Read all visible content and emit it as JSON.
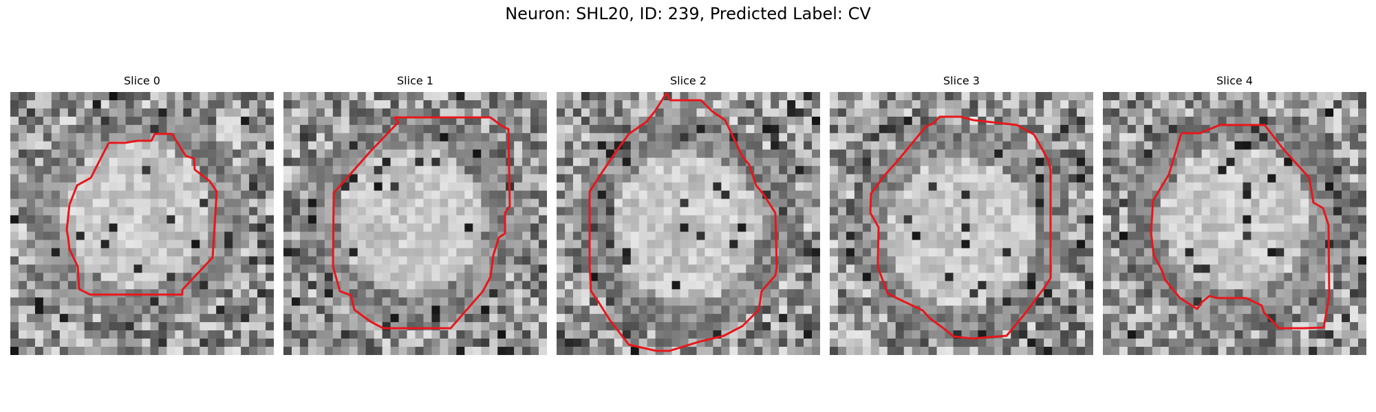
{
  "figure": {
    "title": "Neuron: SHL20, ID: 239, Predicted Label: CV"
  },
  "panels": [
    {
      "title": "Slice 0"
    },
    {
      "title": "Slice 1"
    },
    {
      "title": "Slice 2"
    },
    {
      "title": "Slice 3"
    },
    {
      "title": "Slice 4"
    }
  ],
  "colors": {
    "contour": "#e8161b"
  }
}
